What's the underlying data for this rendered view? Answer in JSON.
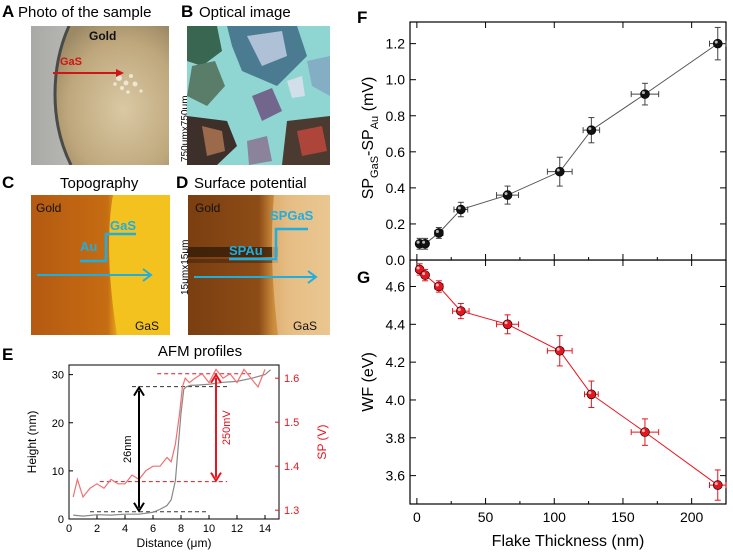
{
  "panels": {
    "A": {
      "letter": "A",
      "title": "Photo of the sample",
      "label_gold": "Gold",
      "label_gas": "GaS"
    },
    "B": {
      "letter": "B",
      "title": "Optical image",
      "scale": "750μmx750μm"
    },
    "C": {
      "letter": "C",
      "title": "Topography",
      "label_gold": "Gold",
      "label_gas": "GaS",
      "label_au": "Au",
      "label_gas_step": "GaS"
    },
    "D": {
      "letter": "D",
      "title": "Surface potential",
      "label_gold": "Gold",
      "label_gas": "GaS",
      "label_sp_au": "SPAu",
      "label_sp_gas": "SPGaS",
      "scale": "15μmx15μm"
    },
    "E": {
      "letter": "E",
      "title": "AFM profiles"
    },
    "F": {
      "letter": "F"
    },
    "G": {
      "letter": "G"
    }
  },
  "colors": {
    "gold_dark": "#b85c10",
    "gold_bright": "#f2c21e",
    "cyan": "#1eaee0",
    "red": "#e8141e",
    "black": "#111111"
  },
  "chart_data": [
    {
      "id": "E",
      "type": "line",
      "title": "AFM profiles",
      "xlabel": "Distance (μm)",
      "ylabel_left": "Height (nm)",
      "ylabel_right": "SP (V)",
      "xlim": [
        0,
        15
      ],
      "ylim_left": [
        0,
        32
      ],
      "ylim_right": [
        1.28,
        1.63
      ],
      "x_ticks": [
        0,
        2,
        4,
        6,
        8,
        10,
        12,
        14
      ],
      "y_ticks_left": [
        0,
        10,
        20,
        30
      ],
      "y_ticks_right": [
        1.3,
        1.4,
        1.5,
        1.6
      ],
      "series": [
        {
          "name": "Height",
          "axis": "left",
          "color": "#888888",
          "x": [
            0.3,
            1,
            2,
            3,
            4,
            5,
            6,
            6.5,
            7,
            7.3,
            7.6,
            7.8,
            8.0,
            8.2,
            8.4,
            8.7,
            9,
            10,
            11,
            12,
            13,
            14,
            14.4
          ],
          "y": [
            0.8,
            0.6,
            0.9,
            0.8,
            1.0,
            1.0,
            1.4,
            2.0,
            2.8,
            4.0,
            8,
            15,
            22,
            27,
            27.5,
            27.8,
            27.8,
            28,
            28.4,
            28.6,
            29.2,
            30,
            31
          ]
        },
        {
          "name": "SP",
          "axis": "right",
          "color": "#f07070",
          "x": [
            0.3,
            0.6,
            1,
            1.5,
            2,
            2.5,
            3,
            3.5,
            4,
            4.5,
            5,
            5.5,
            6,
            6.5,
            7,
            7.3,
            7.6,
            7.9,
            8.1,
            8.3,
            8.6,
            9,
            9.5,
            10,
            10.5,
            11,
            11.5,
            12,
            12.5,
            13,
            13.5,
            14
          ],
          "y": [
            1.33,
            1.37,
            1.33,
            1.35,
            1.36,
            1.35,
            1.37,
            1.36,
            1.36,
            1.38,
            1.37,
            1.39,
            1.4,
            1.4,
            1.42,
            1.41,
            1.45,
            1.52,
            1.58,
            1.6,
            1.59,
            1.6,
            1.61,
            1.59,
            1.62,
            1.6,
            1.61,
            1.59,
            1.62,
            1.6,
            1.58,
            1.62
          ]
        }
      ],
      "annotations": {
        "height_step": "26nm",
        "sp_step": "250mV"
      },
      "guides": {
        "height_low": 1.5,
        "height_high": 27.5,
        "sp_low": 1.365,
        "sp_high": 1.61
      }
    },
    {
      "id": "F",
      "type": "scatter",
      "ylabel": "SP_GaS-SP_Au (mV)",
      "ylabel_main": "SP",
      "ylabel_sub1": "GaS",
      "ylabel_mid": "-SP",
      "ylabel_sub2": "Au",
      "ylabel_unit": " (mV)",
      "xlim": [
        -5,
        225
      ],
      "ylim": [
        0,
        1.32
      ],
      "x_ticks": [
        0,
        50,
        100,
        150,
        200
      ],
      "y_ticks": [
        0.0,
        0.2,
        0.4,
        0.6,
        0.8,
        1.0,
        1.2
      ],
      "y_tick_labels": [
        "0.0",
        "0.2",
        "0.4",
        "0.6",
        "0.8",
        "1.0",
        "1.2"
      ],
      "x": [
        2,
        6,
        16,
        32,
        66,
        104,
        127,
        166,
        219
      ],
      "y": [
        0.09,
        0.09,
        0.15,
        0.28,
        0.36,
        0.49,
        0.72,
        0.92,
        1.2
      ],
      "xerr": [
        2,
        2,
        3,
        5,
        8,
        9,
        6,
        10,
        6
      ],
      "yerr": [
        0.03,
        0.03,
        0.03,
        0.04,
        0.05,
        0.08,
        0.07,
        0.06,
        0.09
      ],
      "color": "#111111"
    },
    {
      "id": "G",
      "type": "scatter",
      "xlabel": "Flake Thickness (nm)",
      "ylabel": "WF (eV)",
      "xlim": [
        -5,
        225
      ],
      "ylim": [
        3.45,
        4.74
      ],
      "x_ticks": [
        0,
        50,
        100,
        150,
        200
      ],
      "y_ticks": [
        3.6,
        3.8,
        4.0,
        4.2,
        4.4,
        4.6
      ],
      "y_tick_labels": [
        "3.6",
        "3.8",
        "4.0",
        "4.2",
        "4.4",
        "4.6"
      ],
      "x": [
        2,
        6,
        16,
        32,
        66,
        104,
        127,
        166,
        219
      ],
      "y": [
        4.69,
        4.66,
        4.6,
        4.47,
        4.4,
        4.26,
        4.03,
        3.83,
        3.55
      ],
      "xerr": [
        2,
        2,
        3,
        6,
        8,
        9,
        5,
        10,
        6
      ],
      "yerr": [
        0.03,
        0.03,
        0.03,
        0.04,
        0.05,
        0.08,
        0.07,
        0.07,
        0.08
      ],
      "color": "#e8141e"
    }
  ]
}
